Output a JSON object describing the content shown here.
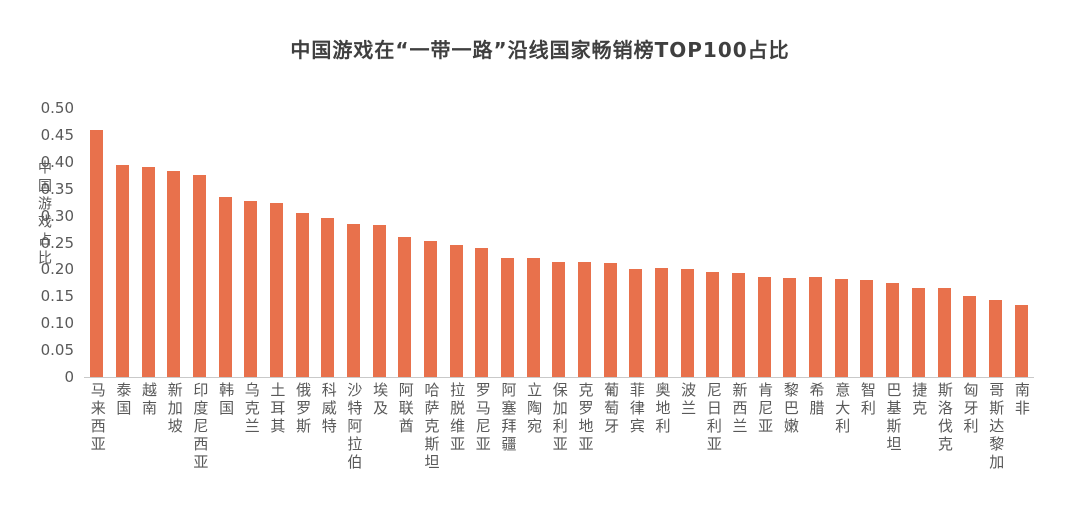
{
  "page": {
    "background": "#FFFFFF"
  },
  "chart_data": {
    "type": "bar",
    "title": "中国游戏在“一带一路”沿线国家畅销榜TOP100占比",
    "ylabel": "中国游戏占比",
    "xlabel": "",
    "ylim": [
      0,
      0.5
    ],
    "yticks": [
      "0",
      "0.05",
      "0.10",
      "0.15",
      "0.20",
      "0.25",
      "0.30",
      "0.35",
      "0.40",
      "0.45",
      "0.50"
    ],
    "grid": false,
    "legend": "none",
    "colors": {
      "bar": "#E8714C",
      "title_text": "#3F3F3F",
      "axis_text": "#595959",
      "axis_line": "#C9C9C9",
      "background": "#FFFFFF"
    },
    "categories": [
      "马来西亚",
      "泰国",
      "越南",
      "新加坡",
      "印度尼西亚",
      "韩国",
      "乌克兰",
      "土耳其",
      "俄罗斯",
      "科威特",
      "沙特阿拉伯",
      "埃及",
      "阿联酋",
      "哈萨克斯坦",
      "拉脱维亚",
      "罗马尼亚",
      "阿塞拜疆",
      "立陶宛",
      "保加利亚",
      "克罗地亚",
      "葡萄牙",
      "菲律宾",
      "奥地利",
      "波兰",
      "尼日利亚",
      "新西兰",
      "肯尼亚",
      "黎巴嫩",
      "希腊",
      "意大利",
      "智利",
      "巴基斯坦",
      "捷克",
      "斯洛伐克",
      "匈牙利",
      "哥斯达黎加",
      "南非"
    ],
    "values": [
      0.46,
      0.395,
      0.39,
      0.382,
      0.375,
      0.335,
      0.328,
      0.324,
      0.305,
      0.295,
      0.285,
      0.282,
      0.26,
      0.252,
      0.245,
      0.24,
      0.222,
      0.221,
      0.213,
      0.214,
      0.212,
      0.201,
      0.203,
      0.2,
      0.195,
      0.193,
      0.185,
      0.184,
      0.185,
      0.183,
      0.181,
      0.175,
      0.166,
      0.165,
      0.15,
      0.144,
      0.133
    ]
  }
}
